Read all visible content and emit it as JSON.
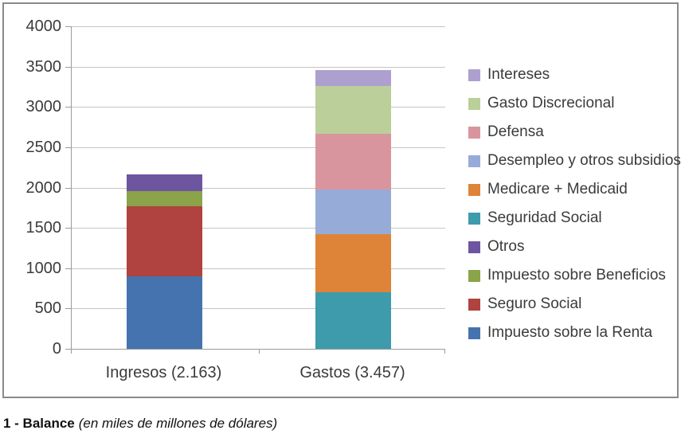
{
  "chart_data": {
    "type": "bar",
    "stacked": true,
    "title": "",
    "grid": true,
    "legend_position": "right",
    "ylim": [
      0,
      4000
    ],
    "yticks": [
      0,
      500,
      1000,
      1500,
      2000,
      2500,
      3000,
      3500,
      4000
    ],
    "categories": [
      "Ingresos (2.163)",
      "Gastos (3.457)"
    ],
    "stacks": [
      {
        "label": "Ingresos (2.163)",
        "total": 2163,
        "segments": [
          {
            "name": "Impuesto sobre la Renta",
            "value": 900,
            "color": "#4573AF"
          },
          {
            "name": "Seguro Social",
            "value": 865,
            "color": "#B0423F"
          },
          {
            "name": "Impuesto sobre Beneficios",
            "value": 190,
            "color": "#8BA44A"
          },
          {
            "name": "Otros",
            "value": 208,
            "color": "#6D55A0"
          }
        ]
      },
      {
        "label": "Gastos (3.457)",
        "total": 3457,
        "segments": [
          {
            "name": "Seguridad Social",
            "value": 700,
            "color": "#3D9BAC"
          },
          {
            "name": "Medicare + Medicaid",
            "value": 724,
            "color": "#DE8438"
          },
          {
            "name": "Desempleo y otros subsidios",
            "value": 555,
            "color": "#97ABD8"
          },
          {
            "name": "Defensa",
            "value": 690,
            "color": "#D9959D"
          },
          {
            "name": "Gasto Discrecional",
            "value": 592,
            "color": "#BACF99"
          },
          {
            "name": "Intereses",
            "value": 196,
            "color": "#ADA0CF"
          }
        ]
      }
    ],
    "legend": [
      {
        "label": "Intereses",
        "color": "#ADA0CF"
      },
      {
        "label": "Gasto Discrecional",
        "color": "#BACF99"
      },
      {
        "label": "Defensa",
        "color": "#D9959D"
      },
      {
        "label": "Desempleo y otros subsidios",
        "color": "#97ABD8"
      },
      {
        "label": "Medicare + Medicaid",
        "color": "#DE8438"
      },
      {
        "label": "Seguridad Social",
        "color": "#3D9BAC"
      },
      {
        "label": "Otros",
        "color": "#6D55A0"
      },
      {
        "label": "Impuesto sobre Beneficios",
        "color": "#8BA44A"
      },
      {
        "label": "Seguro Social",
        "color": "#B0423F"
      },
      {
        "label": "Impuesto sobre la Renta",
        "color": "#4573AF"
      }
    ]
  },
  "caption": {
    "title": "1 - Balance",
    "subtitle": "(en miles de millones de dólares)"
  }
}
